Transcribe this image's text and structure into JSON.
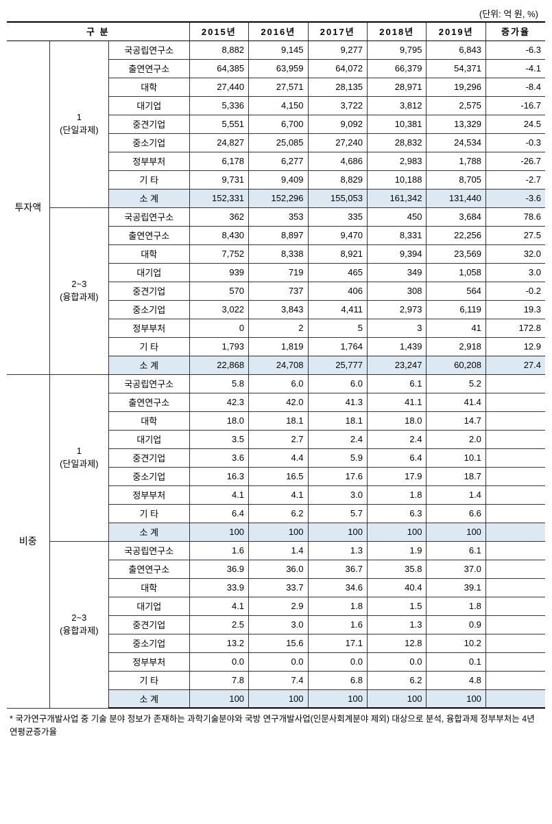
{
  "unit_label": "(단위: 억 원, %)",
  "header": {
    "group": "구  분",
    "years": [
      "2015년",
      "2016년",
      "2017년",
      "2018년",
      "2019년"
    ],
    "rate": "증가율"
  },
  "main_groups": [
    "투자액",
    "비중"
  ],
  "sub_groups": [
    {
      "line1": "1",
      "line2": "(단일과제)"
    },
    {
      "line1": "2~3",
      "line2": "(융합과제)"
    }
  ],
  "categories": [
    "국공립연구소",
    "출연연구소",
    "대학",
    "대기업",
    "중견기업",
    "중소기업",
    "정부부처",
    "기 타",
    "소  계"
  ],
  "sections": [
    {
      "main": "투자액",
      "blocks": [
        {
          "sub": 0,
          "rows": [
            {
              "cat": "국공립연구소",
              "v": [
                "8,882",
                "9,145",
                "9,277",
                "9,795",
                "6,843"
              ],
              "r": "-6.3"
            },
            {
              "cat": "출연연구소",
              "v": [
                "64,385",
                "63,959",
                "64,072",
                "66,379",
                "54,371"
              ],
              "r": "-4.1"
            },
            {
              "cat": "대학",
              "v": [
                "27,440",
                "27,571",
                "28,135",
                "28,971",
                "19,296"
              ],
              "r": "-8.4"
            },
            {
              "cat": "대기업",
              "v": [
                "5,336",
                "4,150",
                "3,722",
                "3,812",
                "2,575"
              ],
              "r": "-16.7"
            },
            {
              "cat": "중견기업",
              "v": [
                "5,551",
                "6,700",
                "9,092",
                "10,381",
                "13,329"
              ],
              "r": "24.5"
            },
            {
              "cat": "중소기업",
              "v": [
                "24,827",
                "25,085",
                "27,240",
                "28,832",
                "24,534"
              ],
              "r": "-0.3"
            },
            {
              "cat": "정부부처",
              "v": [
                "6,178",
                "6,277",
                "4,686",
                "2,983",
                "1,788"
              ],
              "r": "-26.7"
            },
            {
              "cat": "기 타",
              "v": [
                "9,731",
                "9,409",
                "8,829",
                "10,188",
                "8,705"
              ],
              "r": "-2.7"
            },
            {
              "cat": "소  계",
              "v": [
                "152,331",
                "152,296",
                "155,053",
                "161,342",
                "131,440"
              ],
              "r": "-3.6",
              "subtotal": true
            }
          ]
        },
        {
          "sub": 1,
          "rows": [
            {
              "cat": "국공립연구소",
              "v": [
                "362",
                "353",
                "335",
                "450",
                "3,684"
              ],
              "r": "78.6"
            },
            {
              "cat": "출연연구소",
              "v": [
                "8,430",
                "8,897",
                "9,470",
                "8,331",
                "22,256"
              ],
              "r": "27.5"
            },
            {
              "cat": "대학",
              "v": [
                "7,752",
                "8,338",
                "8,921",
                "9,394",
                "23,569"
              ],
              "r": "32.0"
            },
            {
              "cat": "대기업",
              "v": [
                "939",
                "719",
                "465",
                "349",
                "1,058"
              ],
              "r": "3.0"
            },
            {
              "cat": "중견기업",
              "v": [
                "570",
                "737",
                "406",
                "308",
                "564"
              ],
              "r": "-0.2"
            },
            {
              "cat": "중소기업",
              "v": [
                "3,022",
                "3,843",
                "4,411",
                "2,973",
                "6,119"
              ],
              "r": "19.3"
            },
            {
              "cat": "정부부처",
              "v": [
                "0",
                "2",
                "5",
                "3",
                "41"
              ],
              "r": "172.8"
            },
            {
              "cat": "기 타",
              "v": [
                "1,793",
                "1,819",
                "1,764",
                "1,439",
                "2,918"
              ],
              "r": "12.9"
            },
            {
              "cat": "소  계",
              "v": [
                "22,868",
                "24,708",
                "25,777",
                "23,247",
                "60,208"
              ],
              "r": "27.4",
              "subtotal": true
            }
          ]
        }
      ]
    },
    {
      "main": "비중",
      "blocks": [
        {
          "sub": 0,
          "rows": [
            {
              "cat": "국공립연구소",
              "v": [
                "5.8",
                "6.0",
                "6.0",
                "6.1",
                "5.2"
              ],
              "r": ""
            },
            {
              "cat": "출연연구소",
              "v": [
                "42.3",
                "42.0",
                "41.3",
                "41.1",
                "41.4"
              ],
              "r": ""
            },
            {
              "cat": "대학",
              "v": [
                "18.0",
                "18.1",
                "18.1",
                "18.0",
                "14.7"
              ],
              "r": ""
            },
            {
              "cat": "대기업",
              "v": [
                "3.5",
                "2.7",
                "2.4",
                "2.4",
                "2.0"
              ],
              "r": ""
            },
            {
              "cat": "중견기업",
              "v": [
                "3.6",
                "4.4",
                "5.9",
                "6.4",
                "10.1"
              ],
              "r": ""
            },
            {
              "cat": "중소기업",
              "v": [
                "16.3",
                "16.5",
                "17.6",
                "17.9",
                "18.7"
              ],
              "r": ""
            },
            {
              "cat": "정부부처",
              "v": [
                "4.1",
                "4.1",
                "3.0",
                "1.8",
                "1.4"
              ],
              "r": ""
            },
            {
              "cat": "기 타",
              "v": [
                "6.4",
                "6.2",
                "5.7",
                "6.3",
                "6.6"
              ],
              "r": ""
            },
            {
              "cat": "소  계",
              "v": [
                "100",
                "100",
                "100",
                "100",
                "100"
              ],
              "r": "",
              "subtotal": true
            }
          ]
        },
        {
          "sub": 1,
          "rows": [
            {
              "cat": "국공립연구소",
              "v": [
                "1.6",
                "1.4",
                "1.3",
                "1.9",
                "6.1"
              ],
              "r": ""
            },
            {
              "cat": "출연연구소",
              "v": [
                "36.9",
                "36.0",
                "36.7",
                "35.8",
                "37.0"
              ],
              "r": ""
            },
            {
              "cat": "대학",
              "v": [
                "33.9",
                "33.7",
                "34.6",
                "40.4",
                "39.1"
              ],
              "r": ""
            },
            {
              "cat": "대기업",
              "v": [
                "4.1",
                "2.9",
                "1.8",
                "1.5",
                "1.8"
              ],
              "r": ""
            },
            {
              "cat": "중견기업",
              "v": [
                "2.5",
                "3.0",
                "1.6",
                "1.3",
                "0.9"
              ],
              "r": ""
            },
            {
              "cat": "중소기업",
              "v": [
                "13.2",
                "15.6",
                "17.1",
                "12.8",
                "10.2"
              ],
              "r": ""
            },
            {
              "cat": "정부부처",
              "v": [
                "0.0",
                "0.0",
                "0.0",
                "0.0",
                "0.1"
              ],
              "r": ""
            },
            {
              "cat": "기 타",
              "v": [
                "7.8",
                "7.4",
                "6.8",
                "6.2",
                "4.8"
              ],
              "r": ""
            },
            {
              "cat": "소  계",
              "v": [
                "100",
                "100",
                "100",
                "100",
                "100"
              ],
              "r": "",
              "subtotal": true,
              "last": true
            }
          ]
        }
      ]
    }
  ],
  "footnote": "* 국가연구개발사업 중 기술 분야 정보가 존재하는 과학기술분야와 국방 연구개발사업(인문사회계분야 제외) 대상으로 분석, 융합과제 정부부처는 4년 연평균증가율",
  "colors": {
    "subtotal_bg": "#dce8f2",
    "border": "#333333",
    "header_border": "#000000",
    "background": "#ffffff"
  },
  "typography": {
    "body_font": "Malgun Gothic",
    "cell_fontsize_pt": 10,
    "header_fontsize_pt": 10,
    "footnote_fontsize_pt": 9.5
  }
}
